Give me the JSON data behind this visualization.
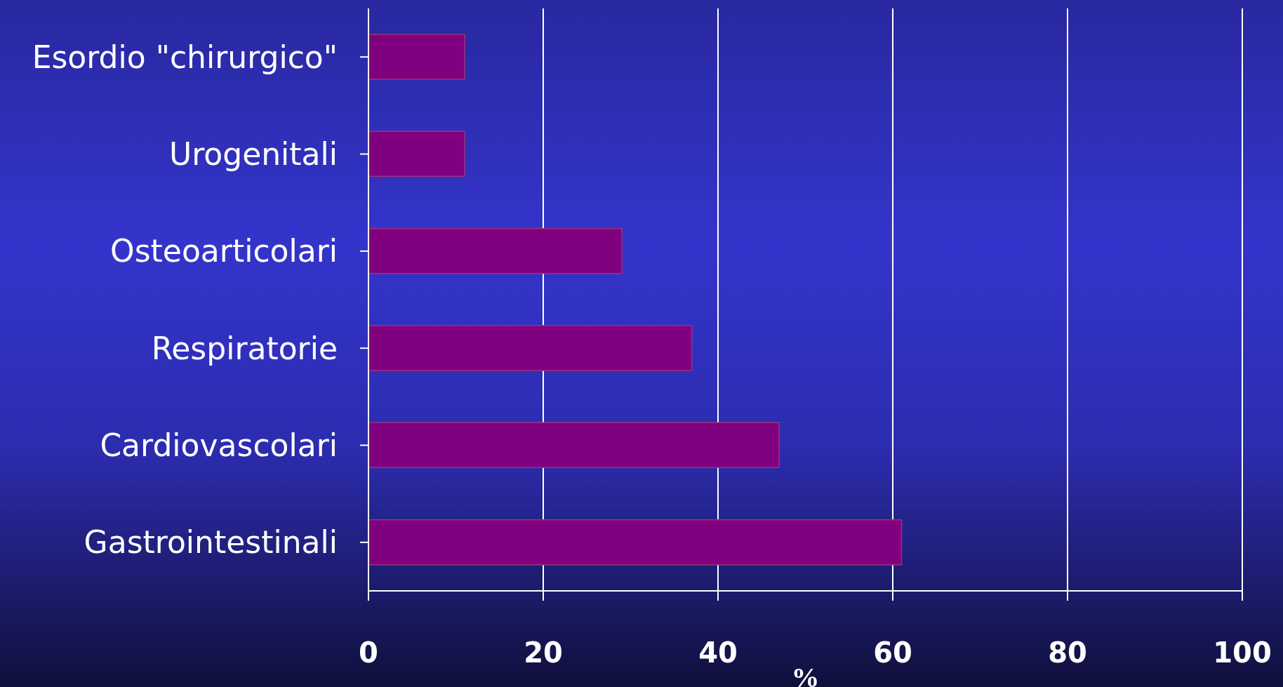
{
  "chart_data": {
    "type": "bar",
    "orientation": "horizontal",
    "categories": [
      "Esordio \"chirurgico\"",
      "Urogenitali",
      "Osteoarticolari",
      "Respiratorie",
      "Cardiovascolari",
      "Gastrointestinali"
    ],
    "values": [
      11,
      11,
      29,
      37,
      47,
      61
    ],
    "color": "#800080",
    "xlim": [
      0,
      100
    ],
    "xticks": [
      0,
      20,
      40,
      60,
      80,
      100
    ],
    "xlabel": "%",
    "grid": "x"
  }
}
